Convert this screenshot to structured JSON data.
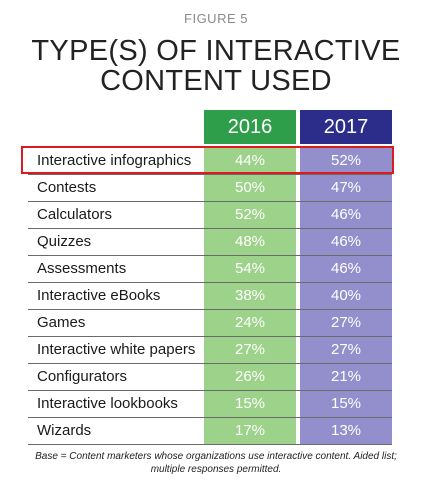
{
  "figure_label": "FIGURE 5",
  "title_lines": [
    "TYPE(S) OF INTERACTIVE",
    "CONTENT USED"
  ],
  "colors": {
    "header_2016": "#2e9e4b",
    "header_2017": "#2c2c8a",
    "cell_2016": "#9dd28a",
    "cell_2017": "#938fcc",
    "highlight": "#e0191f"
  },
  "chart_data": {
    "type": "table",
    "title": "TYPE(S) OF INTERACTIVE CONTENT USED",
    "columns": [
      "2016",
      "2017"
    ],
    "rows": [
      {
        "label": "Interactive infographics",
        "v2016": "44%",
        "v2017": "52%"
      },
      {
        "label": "Contests",
        "v2016": "50%",
        "v2017": "47%"
      },
      {
        "label": "Calculators",
        "v2016": "52%",
        "v2017": "46%"
      },
      {
        "label": "Quizzes",
        "v2016": "48%",
        "v2017": "46%"
      },
      {
        "label": "Assessments",
        "v2016": "54%",
        "v2017": "46%"
      },
      {
        "label": "Interactive eBooks",
        "v2016": "38%",
        "v2017": "40%"
      },
      {
        "label": "Games",
        "v2016": "24%",
        "v2017": "27%"
      },
      {
        "label": "Interactive white papers",
        "v2016": "27%",
        "v2017": "27%"
      },
      {
        "label": "Configurators",
        "v2016": "26%",
        "v2017": "21%"
      },
      {
        "label": "Interactive lookbooks",
        "v2016": "15%",
        "v2017": "15%"
      },
      {
        "label": "Wizards",
        "v2016": "17%",
        "v2017": "13%"
      }
    ],
    "highlighted_row": "Interactive infographics"
  },
  "footnote_lines": [
    "Base = Content marketers whose organizations use interactive content. Aided list;",
    "multiple responses permitted."
  ]
}
